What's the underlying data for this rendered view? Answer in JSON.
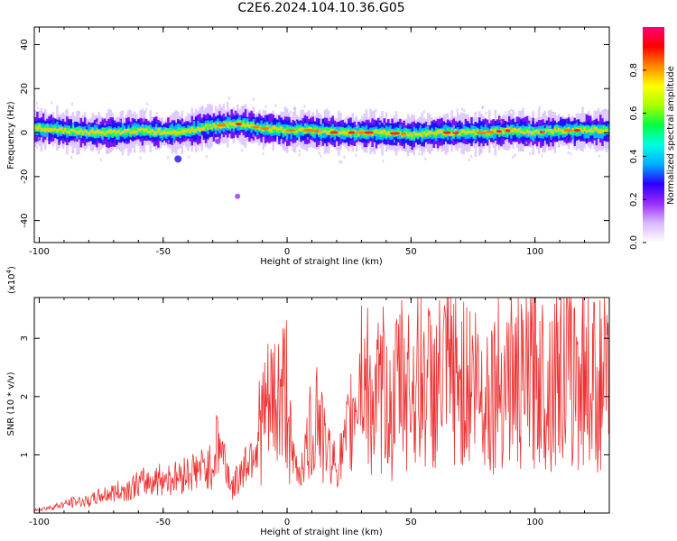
{
  "title": "C2E6.2024.104.10.36.G05",
  "chart_data": [
    {
      "type": "heatmap",
      "xlabel": "Height of straight line (km)",
      "ylabel": "Frequency (Hz)",
      "xlim": [
        -102,
        130
      ],
      "ylim": [
        -50,
        48
      ],
      "xticks": [
        -100,
        -50,
        0,
        50,
        100
      ],
      "yticks": [
        -40,
        -20,
        0,
        20,
        40
      ],
      "colorbar": {
        "label": "Normalized spectral amplitude",
        "range": [
          0,
          1
        ],
        "ticks": [
          "0.0",
          "0.2",
          "0.4",
          "0.6",
          "0.8"
        ],
        "tick_values": [
          0.0,
          0.2,
          0.4,
          0.6,
          0.8
        ],
        "colors": [
          "#ffffff",
          "#d9b8ff",
          "#9a2bff",
          "#2a00ff",
          "#00b0ff",
          "#00ffe0",
          "#00ff40",
          "#aaff00",
          "#ffff00",
          "#ff8800",
          "#ff0000",
          "#ff0077"
        ]
      },
      "ridge_center_hz": [
        {
          "x": -100,
          "y": 2
        },
        {
          "x": -90,
          "y": 1
        },
        {
          "x": -80,
          "y": 0
        },
        {
          "x": -70,
          "y": 0
        },
        {
          "x": -60,
          "y": 1
        },
        {
          "x": -50,
          "y": 0
        },
        {
          "x": -40,
          "y": 1
        },
        {
          "x": -30,
          "y": 3
        },
        {
          "x": -20,
          "y": 4
        },
        {
          "x": -10,
          "y": 2
        },
        {
          "x": 0,
          "y": 1
        },
        {
          "x": 10,
          "y": 1
        },
        {
          "x": 20,
          "y": 0
        },
        {
          "x": 30,
          "y": 0
        },
        {
          "x": 40,
          "y": 0
        },
        {
          "x": 50,
          "y": -1
        },
        {
          "x": 60,
          "y": 0
        },
        {
          "x": 70,
          "y": 0
        },
        {
          "x": 80,
          "y": 0
        },
        {
          "x": 90,
          "y": 1
        },
        {
          "x": 100,
          "y": 0
        },
        {
          "x": 110,
          "y": 1
        },
        {
          "x": 120,
          "y": 1
        },
        {
          "x": 130,
          "y": 1
        }
      ],
      "ridge_halfwidth_hz": 5
    },
    {
      "type": "line",
      "xlabel": "Height of straight line (km)",
      "ylabel": "SNR (10 * v/v)",
      "scale_label": "(x10",
      "scale_exponent": "4",
      "scale_suffix": ")",
      "xlim": [
        -102,
        130
      ],
      "ylim": [
        0,
        3.7
      ],
      "xticks": [
        -100,
        -50,
        0,
        50,
        100
      ],
      "yticks": [
        1,
        2,
        3
      ],
      "series": [
        {
          "color": "#ee3333",
          "x": [
            -102,
            -95,
            -90,
            -85,
            -80,
            -75,
            -70,
            -65,
            -60,
            -55,
            -50,
            -45,
            -40,
            -35,
            -30,
            -28,
            -25,
            -22,
            -20,
            -15,
            -12,
            -10,
            -5,
            0,
            2,
            5,
            10,
            12,
            15,
            20,
            25,
            28,
            30,
            35,
            40,
            42,
            45,
            50,
            55,
            60,
            65,
            70,
            75,
            80,
            85,
            90,
            95,
            100,
            105,
            110,
            115,
            120,
            125,
            130
          ],
          "y": [
            0.05,
            0.1,
            0.15,
            0.2,
            0.2,
            0.3,
            0.35,
            0.4,
            0.5,
            0.55,
            0.6,
            0.6,
            0.7,
            0.75,
            0.8,
            1.3,
            0.9,
            0.4,
            0.6,
            1.0,
            1.3,
            1.6,
            1.9,
            2.1,
            0.9,
            0.7,
            1.4,
            1.9,
            1.2,
            0.8,
            1.3,
            2.2,
            2.5,
            1.8,
            2.2,
            1.5,
            2.3,
            2.2,
            2.3,
            2.1,
            2.4,
            2.2,
            2.3,
            2.0,
            2.3,
            2.4,
            2.1,
            2.5,
            2.2,
            2.6,
            2.3,
            2.5,
            2.2,
            2.2
          ]
        }
      ]
    }
  ]
}
